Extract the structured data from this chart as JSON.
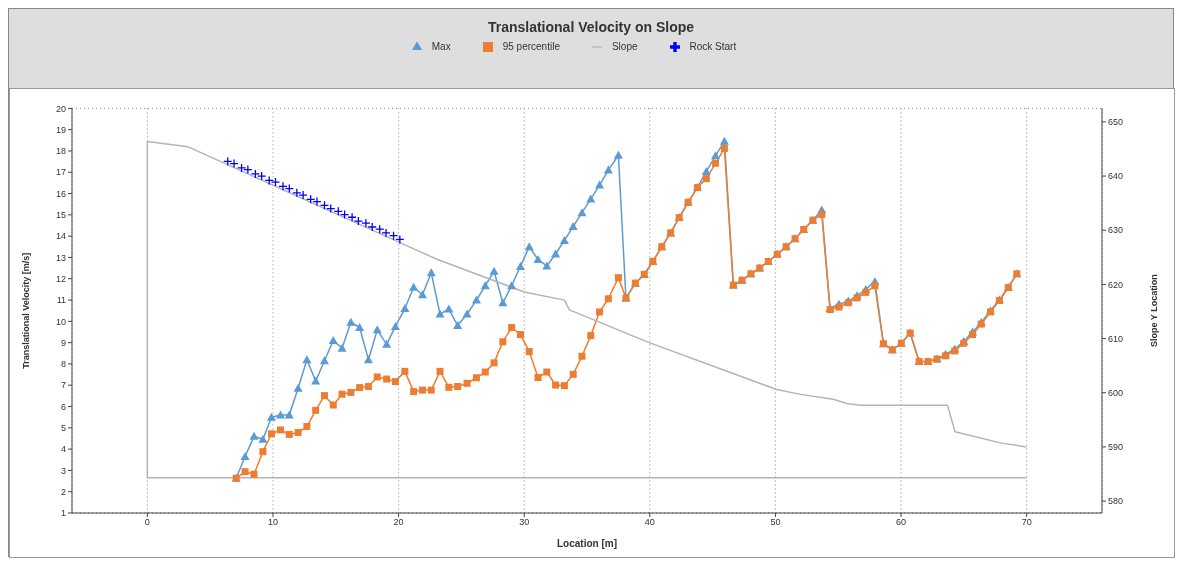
{
  "chart_data": {
    "type": "line",
    "title": "Translational Velocity on Slope",
    "xlabel": "Location [m]",
    "ylabel": "Translational Velocity [m/s]",
    "y2label": "Slope Y Location",
    "x": [
      7.07,
      7.78,
      8.49,
      9.2,
      9.88,
      10.6,
      11.3,
      12.0,
      12.7,
      13.4,
      14.1,
      14.8,
      15.5,
      16.2,
      16.9,
      17.6,
      18.3,
      19.05,
      19.75,
      20.5,
      21.2,
      21.9,
      22.6,
      23.3,
      24.0,
      24.7,
      25.45,
      26.2,
      26.9,
      27.6,
      28.3,
      29.0,
      29.7,
      30.4,
      31.1,
      31.8,
      32.5,
      33.2,
      33.9,
      34.6,
      35.3,
      36.0,
      36.7,
      37.5,
      38.1,
      38.85,
      39.56,
      40.24,
      40.95,
      41.66,
      42.34,
      43.05,
      43.79,
      44.5,
      45.23,
      45.94,
      46.65,
      47.34,
      48.05,
      48.75,
      49.43,
      50.14,
      50.85,
      51.56,
      52.25,
      52.98,
      53.69,
      54.35,
      55.06,
      55.8,
      56.5,
      57.19,
      57.92,
      58.6,
      59.31,
      60.02,
      60.73,
      61.44,
      62.15,
      62.86,
      63.54,
      64.28,
      64.99,
      65.7,
      66.38,
      67.12,
      67.83,
      68.54,
      69.22
    ],
    "series": [
      {
        "name": "Max",
        "color": "#5b9bd5",
        "marker": "triangle",
        "values": [
          2.63,
          3.65,
          4.6,
          4.46,
          5.5,
          5.6,
          5.6,
          6.86,
          8.2,
          7.2,
          8.15,
          9.1,
          8.74,
          9.96,
          9.71,
          8.2,
          9.6,
          8.92,
          9.76,
          10.6,
          11.6,
          11.25,
          12.28,
          10.34,
          10.58,
          9.8,
          10.34,
          11.0,
          11.67,
          12.35,
          10.87,
          11.67,
          12.58,
          13.5,
          12.9,
          12.6,
          13.16,
          13.8,
          14.45,
          15.1,
          15.74,
          16.4,
          17.1,
          17.8,
          11.09,
          11.79,
          12.2,
          12.81,
          13.5,
          14.15,
          14.87,
          15.59,
          16.28,
          17.04,
          17.77,
          18.46,
          11.7,
          11.93,
          12.23,
          12.5,
          12.81,
          13.15,
          13.5,
          13.88,
          14.31,
          14.75,
          15.23,
          10.6,
          10.8,
          10.95,
          11.2,
          11.5,
          11.87,
          8.95,
          8.66,
          8.97,
          9.45,
          8.11,
          8.11,
          8.23,
          8.45,
          8.7,
          9.05,
          9.5,
          9.95,
          10.5,
          11.0,
          11.59,
          12.23
        ]
      },
      {
        "name": "95 percentile",
        "color": "#ed7d31",
        "marker": "square",
        "values": [
          2.63,
          2.94,
          2.82,
          3.88,
          4.72,
          4.9,
          4.69,
          4.78,
          5.06,
          5.82,
          6.51,
          6.07,
          6.58,
          6.66,
          6.89,
          6.94,
          7.39,
          7.29,
          7.17,
          7.65,
          6.7,
          6.77,
          6.77,
          7.65,
          6.9,
          6.94,
          7.09,
          7.35,
          7.62,
          8.05,
          9.04,
          9.71,
          9.38,
          8.58,
          7.36,
          7.62,
          7.01,
          6.98,
          7.51,
          8.36,
          9.33,
          10.44,
          11.06,
          12.05,
          11.09,
          11.79,
          12.2,
          12.81,
          13.5,
          14.15,
          14.87,
          15.59,
          16.28,
          16.7,
          17.42,
          18.12,
          11.7,
          11.93,
          12.23,
          12.5,
          12.81,
          13.15,
          13.5,
          13.88,
          14.31,
          14.75,
          15.02,
          10.55,
          10.67,
          10.87,
          11.1,
          11.36,
          11.67,
          8.95,
          8.66,
          8.97,
          9.45,
          8.11,
          8.11,
          8.23,
          8.38,
          8.61,
          8.97,
          9.38,
          9.87,
          10.44,
          10.98,
          11.59,
          12.23
        ]
      },
      {
        "name": "Slope",
        "color": "#b4b4b4",
        "marker": "none",
        "axis": "y2",
        "x": [
          70,
          0,
          0,
          3.25,
          20.5,
          23.1,
          30.0,
          33.2,
          33.6,
          39.9,
          50.1,
          52.0,
          54.6,
          55.7,
          56.8,
          63.7,
          64.3,
          68.0,
          70
        ],
        "values": [
          584.3,
          584.3,
          646.4,
          645.4,
          627.3,
          624.6,
          618.6,
          617.1,
          615.3,
          609.3,
          600.6,
          599.7,
          598.8,
          598,
          597.7,
          597.7,
          592.8,
          590.7,
          590
        ]
      },
      {
        "name": "Rock Start",
        "type": "scatter",
        "color": "#0000ff",
        "marker": "cross",
        "axis": "y2",
        "x": [
          6.4,
          6.9,
          7.5,
          8.0,
          8.6,
          9.1,
          9.7,
          10.2,
          10.8,
          11.3,
          11.9,
          12.4,
          13.0,
          13.5,
          14.1,
          14.6,
          15.2,
          15.7,
          16.3,
          16.8,
          17.4,
          17.9,
          18.5,
          19.0,
          19.6,
          20.1
        ],
        "values": [
          642.7,
          642.3,
          641.5,
          641.2,
          640.4,
          640.0,
          639.2,
          638.9,
          638.1,
          637.7,
          636.9,
          636.5,
          635.7,
          635.3,
          634.6,
          634.0,
          633.5,
          632.9,
          632.4,
          631.7,
          631.3,
          630.6,
          630.2,
          629.5,
          629.0,
          628.3
        ]
      }
    ],
    "xlim": [
      -6,
      76
    ],
    "xticks": [
      0,
      10,
      20,
      30,
      40,
      50,
      60,
      70
    ],
    "ylim": [
      1,
      20
    ],
    "yticks": [
      1,
      2,
      3,
      4,
      5,
      6,
      7,
      8,
      9,
      10,
      11,
      12,
      13,
      14,
      15,
      16,
      17,
      18,
      19,
      20
    ],
    "y2lim": [
      577.8,
      652.5
    ],
    "y2ticks": [
      580,
      590,
      600,
      610,
      620,
      630,
      640,
      650
    ],
    "grid": true,
    "legend": "top",
    "line_style": "solid"
  }
}
